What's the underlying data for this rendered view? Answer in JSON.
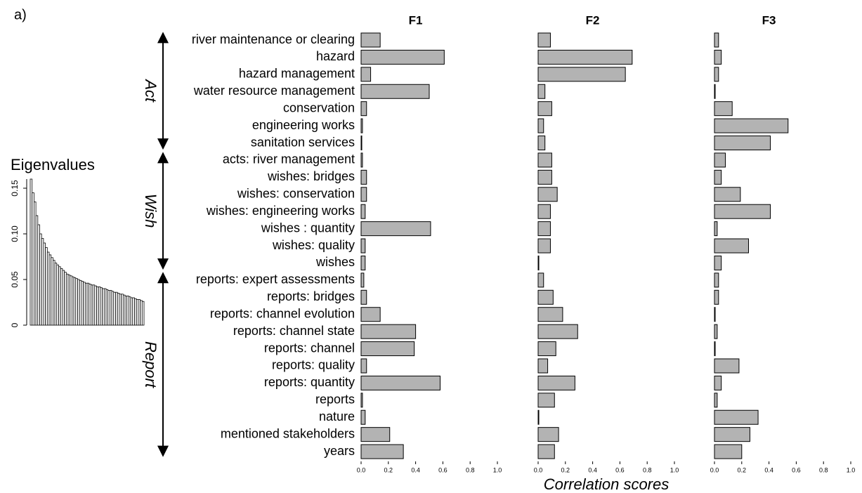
{
  "panel_label": "a)",
  "chart_data": [
    {
      "type": "hbar-panels",
      "categories": [
        "river maintenance or clearing",
        "hazard",
        "hazard management",
        "water resource management",
        "conservation",
        "engineering works",
        "sanitation services",
        "acts: river management",
        "wishes: bridges",
        "wishes: conservation",
        "wishes: engineering works",
        "wishes : quantity",
        "wishes: quality",
        "wishes",
        "reports: expert assessments",
        "reports: bridges",
        "reports: channel evolution",
        "reports: channel state",
        "reports: channel",
        "reports: quality",
        "reports: quantity",
        "reports",
        "nature",
        "mentioned stakeholders",
        "years"
      ],
      "groups": [
        "Act",
        "Wish",
        "Report"
      ],
      "series": [
        {
          "name": "F1",
          "color": "#b3b3b3",
          "values": [
            0.14,
            0.61,
            0.07,
            0.5,
            0.04,
            0.01,
            0.005,
            0.01,
            0.04,
            0.04,
            0.03,
            0.51,
            0.03,
            0.03,
            0.02,
            0.04,
            0.14,
            0.4,
            0.39,
            0.04,
            0.58,
            0.01,
            0.03,
            0.21,
            0.31
          ]
        },
        {
          "name": "F2",
          "color": "#b3b3b3",
          "values": [
            0.09,
            0.69,
            0.64,
            0.05,
            0.1,
            0.04,
            0.05,
            0.1,
            0.1,
            0.14,
            0.09,
            0.09,
            0.09,
            0.005,
            0.04,
            0.11,
            0.18,
            0.29,
            0.13,
            0.07,
            0.27,
            0.12,
            0.005,
            0.15,
            0.12
          ]
        },
        {
          "name": "F3",
          "color": "#b3b3b3",
          "values": [
            0.03,
            0.05,
            0.03,
            0.005,
            0.13,
            0.54,
            0.41,
            0.08,
            0.05,
            0.19,
            0.41,
            0.02,
            0.25,
            0.05,
            0.03,
            0.03,
            0.005,
            0.02,
            0.005,
            0.18,
            0.05,
            0.02,
            0.32,
            0.26,
            0.2
          ]
        }
      ],
      "xlim": [
        0,
        1
      ],
      "xticks": [
        {
          "value": 0,
          "label": "0.0"
        },
        0.2,
        0.4,
        0.6,
        0.8,
        {
          "value": 1,
          "label": "1.0"
        }
      ],
      "xlabel": "Correlation scores"
    },
    {
      "type": "eigen-bar",
      "title": "Eigenvalues",
      "color": "#000000",
      "values": [
        0.16,
        0.145,
        0.135,
        0.12,
        0.11,
        0.1,
        0.095,
        0.09,
        0.085,
        0.08,
        0.077,
        0.074,
        0.071,
        0.068,
        0.066,
        0.064,
        0.062,
        0.06,
        0.058,
        0.056,
        0.055,
        0.054,
        0.053,
        0.052,
        0.051,
        0.05,
        0.049,
        0.048,
        0.047,
        0.046,
        0.046,
        0.045,
        0.044,
        0.044,
        0.043,
        0.042,
        0.042,
        0.041,
        0.04,
        0.04,
        0.039,
        0.038,
        0.038,
        0.037,
        0.036,
        0.036,
        0.035,
        0.034,
        0.034,
        0.033,
        0.032,
        0.032,
        0.031,
        0.03,
        0.03,
        0.029,
        0.028,
        0.028,
        0.027,
        0.026
      ],
      "ylim": [
        0,
        0.16
      ],
      "yticks": [
        0,
        {
          "value": 0.05,
          "label": "0.05"
        },
        {
          "value": 0.1,
          "label": "0.10"
        },
        0.15
      ]
    }
  ]
}
